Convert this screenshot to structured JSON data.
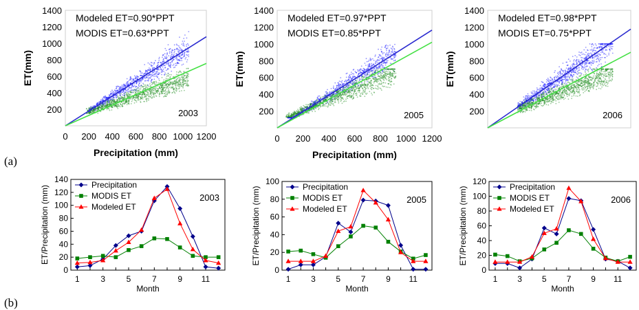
{
  "panel_labels": [
    "(a)",
    "(b)"
  ],
  "colors": {
    "precipitation": "#00008B",
    "modis": "#008000",
    "modeled": "#FF0000",
    "scatter_modeled": "#1010FF",
    "scatter_modis": "#1E8C1E",
    "fit_modeled": "#2A2ACF",
    "fit_modis": "#44E044"
  },
  "chart_data": [
    {
      "type": "scatter",
      "panel": "a",
      "year_label": "2003",
      "xlabel": "Precipitation (mm)",
      "ylabel": "ET(mm)",
      "xlim": [
        0,
        1200
      ],
      "ylim": [
        0,
        1400
      ],
      "xticks": [
        0,
        200,
        400,
        600,
        800,
        1000,
        1200
      ],
      "yticks": [
        200,
        400,
        600,
        800,
        1000,
        1200,
        1400
      ],
      "annotations": [
        "Modeled ET=0.90*PPT",
        "MODIS ET=0.63*PPT"
      ],
      "series": [
        {
          "name": "Modeled ET",
          "fit_slope": 0.9,
          "x_range": [
            200,
            1050
          ],
          "y_range": [
            120,
            1250
          ]
        },
        {
          "name": "MODIS ET",
          "fit_slope": 0.63,
          "x_range": [
            180,
            1050
          ],
          "y_range": [
            150,
            720
          ]
        }
      ]
    },
    {
      "type": "scatter",
      "panel": "a",
      "year_label": "2005",
      "xlabel": "Precipitation (mm)",
      "ylabel": "ET(mm)",
      "xlim": [
        0,
        1200
      ],
      "ylim": [
        0,
        1400
      ],
      "xticks": [
        0,
        200,
        400,
        600,
        800,
        1000,
        1200
      ],
      "yticks": [
        200,
        400,
        600,
        800,
        1000,
        1200,
        1400
      ],
      "annotations": [
        "Modeled ET=0.97*PPT",
        "MODIS ET=0.85*PPT"
      ],
      "series": [
        {
          "name": "Modeled ET",
          "fit_slope": 0.97,
          "x_range": [
            80,
            920
          ],
          "y_range": [
            120,
            1050
          ]
        },
        {
          "name": "MODIS ET",
          "fit_slope": 0.85,
          "x_range": [
            70,
            920
          ],
          "y_range": [
            130,
            700
          ]
        }
      ]
    },
    {
      "type": "scatter",
      "panel": "a",
      "year_label": "2006",
      "xlabel": "",
      "ylabel": "ET(mm)",
      "xlim": [
        0,
        1200
      ],
      "ylim": [
        0,
        1400
      ],
      "xticks": [],
      "yticks": [
        200,
        400,
        600,
        800,
        1000,
        1200,
        1400
      ],
      "annotations": [
        "Modeled ET=0.98*PPT",
        "MODIS ET=0.75*PPT"
      ],
      "series": [
        {
          "name": "Modeled ET",
          "fit_slope": 0.98,
          "x_range": [
            250,
            1050
          ],
          "y_range": [
            150,
            1000
          ]
        },
        {
          "name": "MODIS ET",
          "fit_slope": 0.75,
          "x_range": [
            250,
            1050
          ],
          "y_range": [
            150,
            700
          ]
        }
      ]
    },
    {
      "type": "line",
      "panel": "b",
      "year_label": "2003",
      "xlabel": "Month",
      "ylabel": "ET/Precipitation (mm)",
      "x": [
        1,
        2,
        3,
        4,
        5,
        6,
        7,
        8,
        9,
        10,
        11,
        12
      ],
      "xticks": [
        1,
        3,
        5,
        7,
        9,
        11
      ],
      "ylim": [
        0,
        140
      ],
      "yticks": [
        0,
        20,
        40,
        60,
        80,
        100,
        120,
        140
      ],
      "legend": "top-left",
      "series": [
        {
          "name": "Precipitation",
          "values": [
            5,
            7,
            17,
            38,
            53,
            60,
            107,
            129,
            95,
            52,
            5,
            3
          ]
        },
        {
          "name": "MODIS ET",
          "values": [
            18,
            20,
            22,
            20,
            31,
            37,
            49,
            48,
            35,
            22,
            20,
            20
          ]
        },
        {
          "name": "Modeled ET",
          "values": [
            11,
            12,
            15,
            30,
            43,
            62,
            111,
            125,
            72,
            32,
            15,
            11
          ]
        }
      ]
    },
    {
      "type": "line",
      "panel": "b",
      "year_label": "2005",
      "xlabel": "Month",
      "ylabel": "ET/Precipitation (mm)",
      "x": [
        1,
        2,
        3,
        4,
        5,
        6,
        7,
        8,
        9,
        10,
        11,
        12
      ],
      "xticks": [
        1,
        3,
        5,
        7,
        9,
        11
      ],
      "ylim": [
        0,
        100
      ],
      "yticks": [
        0,
        20,
        40,
        60,
        80,
        100
      ],
      "legend": "top-left",
      "series": [
        {
          "name": "Precipitation",
          "values": [
            1,
            6,
            6,
            15,
            53,
            43,
            79,
            78,
            73,
            28,
            1,
            1
          ]
        },
        {
          "name": "MODIS ET",
          "values": [
            21,
            22,
            18,
            14,
            27,
            38,
            50,
            48,
            32,
            21,
            13,
            17
          ]
        },
        {
          "name": "Modeled ET",
          "values": [
            10,
            10,
            10,
            16,
            44,
            49,
            90,
            76,
            57,
            20,
            10,
            10
          ]
        }
      ]
    },
    {
      "type": "line",
      "panel": "b",
      "year_label": "2006",
      "xlabel": "Month",
      "ylabel": "ET/Precipitation (mm)",
      "x": [
        1,
        2,
        3,
        4,
        5,
        6,
        7,
        8,
        9,
        10,
        11,
        12
      ],
      "xticks": [
        1,
        3,
        5,
        7,
        9,
        11
      ],
      "ylim": [
        0,
        120
      ],
      "yticks": [
        0,
        20,
        40,
        60,
        80,
        100,
        120
      ],
      "legend": "top-left",
      "series": [
        {
          "name": "Precipitation",
          "values": [
            9,
            9,
            3,
            15,
            57,
            49,
            97,
            94,
            55,
            15,
            12,
            3
          ]
        },
        {
          "name": "MODIS ET",
          "values": [
            21,
            19,
            12,
            16,
            28,
            37,
            54,
            49,
            29,
            17,
            12,
            18
          ]
        },
        {
          "name": "Modeled ET",
          "values": [
            11,
            11,
            11,
            18,
            50,
            56,
            111,
            93,
            42,
            16,
            11,
            11
          ]
        }
      ]
    }
  ]
}
